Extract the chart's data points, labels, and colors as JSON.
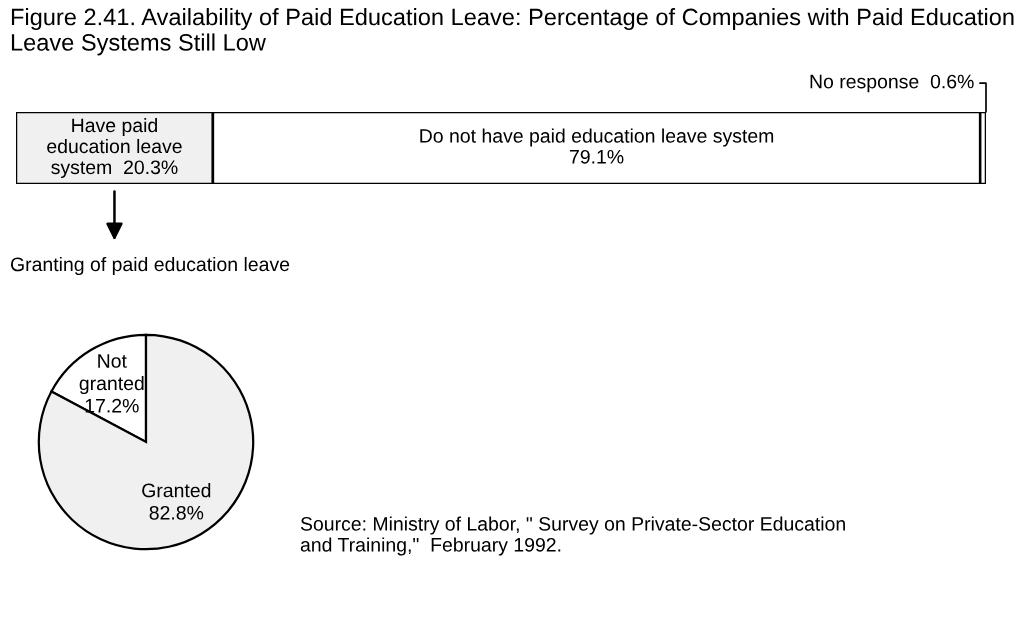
{
  "chart_data": [
    {
      "type": "bar",
      "title": "Figure 2.41. Availability of Paid Education Leave: Percentage of Companies with Paid Education Leave Systems Still Low",
      "orientation": "horizontal",
      "stacked": true,
      "categories": [
        null
      ],
      "series": [
        {
          "name": "Have paid\neducation leave\nsystem",
          "color": "#f0f0f0",
          "values": [
            20.3
          ],
          "value_labels": [
            "20.3%"
          ]
        },
        {
          "name": "Do not have paid education leave system",
          "color": "#ffffff",
          "values": [
            79.1
          ],
          "value_labels": [
            "79.1%"
          ]
        },
        {
          "name": "No response",
          "color": "#ffffff",
          "values": [
            0.6
          ],
          "value_labels": [
            "0.6%"
          ]
        }
      ],
      "legend": false
    },
    {
      "type": "pie",
      "title": "Granting of paid education leave",
      "categories": [
        "Not\ngranted",
        "Granted"
      ],
      "values": [
        17.2,
        82.8
      ],
      "value_labels": [
        "17.2%",
        "82.8%"
      ],
      "colors": [
        "#ffffff",
        "#f0f0f0"
      ],
      "annotations": [
        "Source: Ministry of Labor, \" Survey on Private-Sector Education\nand Training,\"  February 1992."
      ]
    }
  ]
}
